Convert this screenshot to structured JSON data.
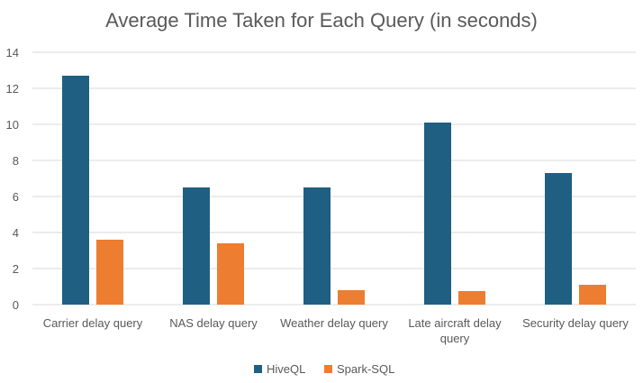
{
  "chart_data": {
    "type": "bar",
    "title": "Average Time Taken for Each Query (in seconds)",
    "categories": [
      [
        "Carrier delay query"
      ],
      [
        "NAS delay query"
      ],
      [
        "Weather delay query"
      ],
      [
        "Late aircraft delay",
        "query"
      ],
      [
        "Security delay query"
      ]
    ],
    "series": [
      {
        "name": "HiveQL",
        "color": "#1f5f82",
        "values": [
          12.7,
          6.5,
          6.5,
          10.1,
          7.3
        ]
      },
      {
        "name": "Spark-SQL",
        "color": "#ed7d31",
        "values": [
          3.6,
          3.4,
          0.8,
          0.75,
          1.1
        ]
      }
    ],
    "ylim": [
      0,
      14
    ],
    "yticks": [
      0,
      2,
      4,
      6,
      8,
      10,
      12,
      14
    ],
    "grid": true,
    "legend_position": "bottom"
  }
}
